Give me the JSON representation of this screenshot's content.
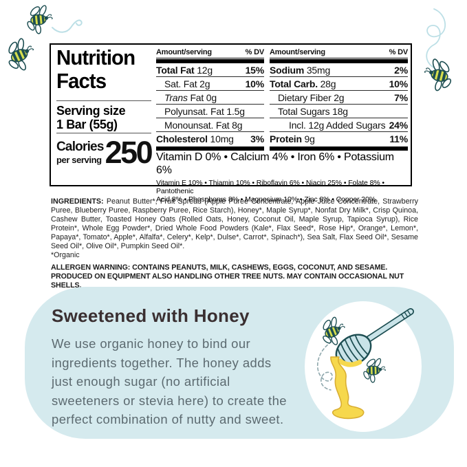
{
  "nutrition_label": {
    "title_line1": "Nutrition",
    "title_line2": "Facts",
    "serving_size_label": "Serving size",
    "serving_size_value": "1 Bar (55g)",
    "calories_label": "Calories",
    "calories_sublabel": "per serving",
    "calories_value": "250",
    "columns": [
      {
        "header_amount": "Amount/serving",
        "header_dv": "% DV",
        "rows": [
          {
            "name": "Total Fat",
            "amount": "12g",
            "dv": "15%",
            "bold": true,
            "indent": 0
          },
          {
            "name": "Sat. Fat",
            "amount": "2g",
            "dv": "10%",
            "indent": 1
          },
          {
            "name": "Fat",
            "italic_prefix": "Trans",
            "amount": "0g",
            "indent": 1
          },
          {
            "name": "Polyunsat. Fat",
            "amount": "1.5g",
            "indent": 1
          },
          {
            "name": "Monounsat. Fat",
            "amount": "8g",
            "indent": 1
          },
          {
            "name": "Cholesterol",
            "amount": "10mg",
            "dv": "3%",
            "bold": true,
            "indent": 0
          }
        ]
      },
      {
        "header_amount": "Amount/serving",
        "header_dv": "% DV",
        "rows": [
          {
            "name": "Sodium",
            "amount": "35mg",
            "dv": "2%",
            "bold": true,
            "indent": 0
          },
          {
            "name": "Total Carb.",
            "amount": "28g",
            "dv": "10%",
            "bold": true,
            "indent": 0
          },
          {
            "name": "Dietary Fiber",
            "amount": "2g",
            "dv": "7%",
            "indent": 1
          },
          {
            "name": "Total Sugars",
            "amount": "18g",
            "indent": 1
          },
          {
            "name": "Incl. 12g Added Sugars",
            "amount": "",
            "dv": "24%",
            "indent": 2
          },
          {
            "name": "Protein",
            "amount": "9g",
            "dv": "11%",
            "bold": true,
            "indent": 0
          }
        ]
      }
    ],
    "vitamins_primary": "Vitamin D 0% • Calcium 4% • Iron 6% • Potassium 6%",
    "vitamins_secondary": "Vitamin E 10% • Thiamin 10% • Riboflavin 6% • Niacin 25% • Folate 8% • Pantothenic\nAcid 8% • Phosphorus 8% • Magnesium 10% • Zinc 8% • Copper 20%"
  },
  "ingredients": {
    "label": "INGREDIENTS:",
    "text": "Peanut Butter*, Fruit Spread (Apple Puree Concentrate, Apple Juice Concentrate, Strawberry Puree, Blueberry Puree, Raspberry Puree, Rice Starch), Honey*, Maple Syrup*, Nonfat Dry Milk*, Crisp Quinoa, Cashew Butter, Toasted Honey Oats (Rolled Oats, Honey, Coconut Oil, Maple Syrup, Tapioca Syrup), Rice Protein*, Whole Egg Powder*, Dried Whole Food Powders (Kale*, Flax Seed*, Rose Hip*, Orange*, Lemon*, Papaya*, Tomato*, Apple*, Alfalfa*, Celery*, Kelp*, Dulse*, Carrot*, Spinach*), Sea Salt, Flax Seed Oil*, Sesame Seed Oil*, Olive Oil*, Pumpkin Seed Oil*.",
    "organic_note": "*Organic",
    "allergen_warning": "ALLERGEN WARNING: CONTAINS PEANUTS, MILK, CASHEWS, EGGS, COCONUT, AND SESAME.  PRODUCED ON EQUIPMENT ALSO HANDLING OTHER TREE NUTS.  MAY CONTAIN OCCASIONAL NUT SHELLS."
  },
  "honey_section": {
    "heading": "Sweetened with Honey",
    "body": "We use organic honey to bind our\ningredients together. The honey adds\njust enough sugar (no artificial\nsweeteners or stevia here) to create the\nperfect combination of nutty and sweet.",
    "icons": [
      "bee-icon",
      "bee-icon",
      "honey-dipper-icon",
      "swirl-icon"
    ]
  },
  "decor": {
    "top_left_icons": [
      "bee-icon",
      "bee-icon",
      "swirl-icon"
    ],
    "top_right_icons": [
      "swirl-icon",
      "bee-icon"
    ]
  },
  "colors": {
    "callout_background": "#d5eaee",
    "heading_text": "#3a2f31",
    "body_text": "#5c6a70",
    "bee_yellow": "#d6de4d",
    "outline_teal": "#1d4e52",
    "dipper_blue": "#c9e3e8",
    "honey_yellow": "#f6d84d",
    "swirl_blue": "#bcdfe6",
    "label_black": "#000000"
  }
}
